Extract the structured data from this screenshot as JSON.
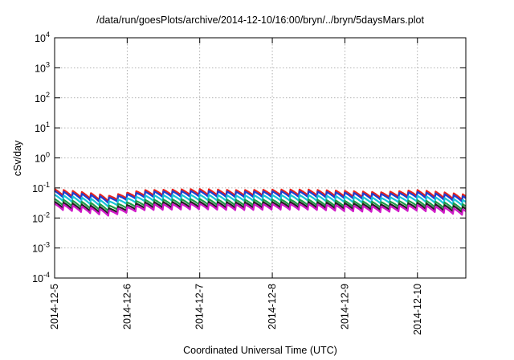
{
  "chart_data": {
    "type": "line",
    "title": "/data/run/goesPlots/archive/2014-12-10/16:00/bryn/../bryn/5daysMars.plot",
    "xlabel": "Coordinated Universal Time (UTC)",
    "ylabel": "cSv/day",
    "x_range": [
      "2014-12-05T00:00",
      "2014-12-10T16:00"
    ],
    "x_ticks": [
      "2014-12-5",
      "2014-12-6",
      "2014-12-7",
      "2014-12-8",
      "2014-12-9",
      "2014-12-10"
    ],
    "y_scale": "log",
    "ylim": [
      0.0001,
      10000
    ],
    "y_ticks": [
      {
        "base": "10",
        "exp": "4"
      },
      {
        "base": "10",
        "exp": "3"
      },
      {
        "base": "10",
        "exp": "2"
      },
      {
        "base": "10",
        "exp": "1"
      },
      {
        "base": "10",
        "exp": "0"
      },
      {
        "base": "10",
        "exp": "-1"
      },
      {
        "base": "10",
        "exp": "-2"
      },
      {
        "base": "10",
        "exp": "-3"
      },
      {
        "base": "10",
        "exp": "-4"
      }
    ],
    "grid": true,
    "sawtooth_period_hours": 3,
    "series": [
      {
        "color": "#e8221b",
        "envelope": [
          [
            0,
            0.092
          ],
          [
            18,
            0.055
          ],
          [
            30,
            0.085
          ],
          [
            48,
            0.092
          ],
          [
            60,
            0.085
          ],
          [
            72,
            0.088
          ],
          [
            84,
            0.088
          ],
          [
            96,
            0.08
          ],
          [
            108,
            0.072
          ],
          [
            120,
            0.085
          ],
          [
            136,
            0.06
          ]
        ]
      },
      {
        "color": "#1f3fd1",
        "envelope": [
          [
            0,
            0.08
          ],
          [
            18,
            0.048
          ],
          [
            30,
            0.075
          ],
          [
            48,
            0.08
          ],
          [
            60,
            0.075
          ],
          [
            72,
            0.077
          ],
          [
            84,
            0.077
          ],
          [
            96,
            0.07
          ],
          [
            108,
            0.063
          ],
          [
            120,
            0.074
          ],
          [
            136,
            0.052
          ]
        ]
      },
      {
        "color": "#18c2d6",
        "envelope": [
          [
            0,
            0.06
          ],
          [
            18,
            0.036
          ],
          [
            30,
            0.056
          ],
          [
            48,
            0.06
          ],
          [
            60,
            0.056
          ],
          [
            72,
            0.058
          ],
          [
            84,
            0.058
          ],
          [
            96,
            0.052
          ],
          [
            108,
            0.047
          ],
          [
            120,
            0.055
          ],
          [
            136,
            0.039
          ]
        ]
      },
      {
        "color": "#1e9a47",
        "envelope": [
          [
            0,
            0.043
          ],
          [
            18,
            0.026
          ],
          [
            30,
            0.04
          ],
          [
            48,
            0.043
          ],
          [
            60,
            0.04
          ],
          [
            72,
            0.041
          ],
          [
            84,
            0.041
          ],
          [
            96,
            0.037
          ],
          [
            108,
            0.034
          ],
          [
            120,
            0.039
          ],
          [
            136,
            0.028
          ]
        ]
      },
      {
        "color": "#222222",
        "envelope": [
          [
            0,
            0.035
          ],
          [
            18,
            0.021
          ],
          [
            30,
            0.033
          ],
          [
            48,
            0.035
          ],
          [
            60,
            0.033
          ],
          [
            72,
            0.034
          ],
          [
            84,
            0.034
          ],
          [
            96,
            0.031
          ],
          [
            108,
            0.028
          ],
          [
            120,
            0.032
          ],
          [
            136,
            0.023
          ]
        ]
      },
      {
        "color": "#d019c8",
        "envelope": [
          [
            0,
            0.03
          ],
          [
            18,
            0.018
          ],
          [
            30,
            0.028
          ],
          [
            48,
            0.03
          ],
          [
            60,
            0.028
          ],
          [
            72,
            0.029
          ],
          [
            84,
            0.029
          ],
          [
            96,
            0.026
          ],
          [
            108,
            0.024
          ],
          [
            120,
            0.027
          ],
          [
            136,
            0.019
          ]
        ]
      }
    ]
  }
}
